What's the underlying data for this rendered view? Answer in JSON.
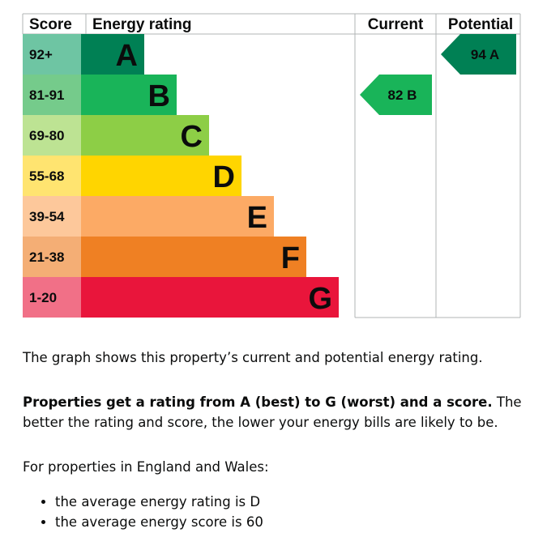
{
  "chart_data": {
    "type": "bar",
    "headers": {
      "score": "Score",
      "rating": "Energy rating",
      "current": "Current",
      "potential": "Potential"
    },
    "bands": [
      {
        "score": "92+",
        "letter": "A",
        "color": "#008054",
        "score_color": "#6ec5a3"
      },
      {
        "score": "81-91",
        "letter": "B",
        "color": "#19b459",
        "score_color": "#75cb8b"
      },
      {
        "score": "69-80",
        "letter": "C",
        "color": "#8dce46",
        "score_color": "#bde393"
      },
      {
        "score": "55-68",
        "letter": "D",
        "color": "#ffd500",
        "score_color": "#ffe470"
      },
      {
        "score": "39-54",
        "letter": "E",
        "color": "#fcaa65",
        "score_color": "#fdc89b"
      },
      {
        "score": "21-38",
        "letter": "F",
        "color": "#ef8023",
        "score_color": "#f4ae75"
      },
      {
        "score": "1-20",
        "letter": "G",
        "color": "#e9153b",
        "score_color": "#f17087"
      }
    ],
    "current": {
      "value": 82,
      "band": "B",
      "label": "82 B",
      "color": "#19b459"
    },
    "potential": {
      "value": 94,
      "band": "A",
      "label": "94 A",
      "color": "#008054"
    }
  },
  "description": {
    "intro": "The graph shows this property’s current and potential energy rating.",
    "bold_lead": "Properties get a rating from A (best) to G (worst) and a score.",
    "rest": " The better the rating and score, the lower your energy bills are likely to be.",
    "region_intro": "For properties in England and Wales:",
    "bullets": [
      "the average energy rating is D",
      "the average energy score is 60"
    ]
  }
}
